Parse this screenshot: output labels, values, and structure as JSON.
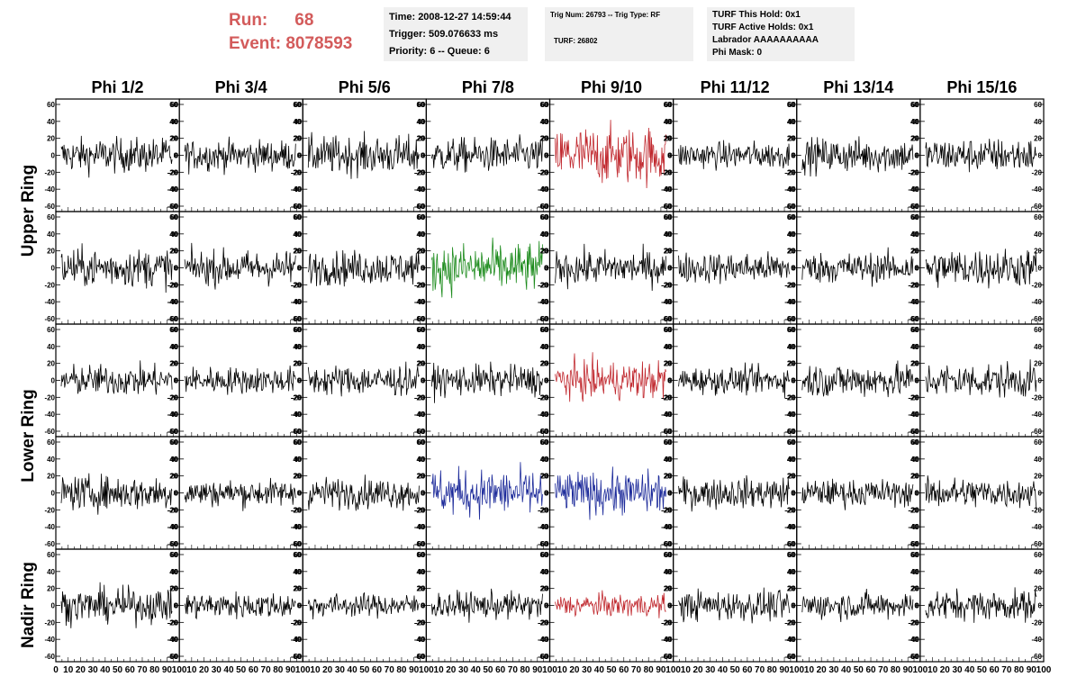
{
  "header": {
    "run_label": "Run:",
    "run_value": "68",
    "event_label": "Event:",
    "event_value": "8078593"
  },
  "time_box": {
    "time": "Time: 2008-12-27 14:59:44",
    "trigger": "Trigger: 509.076633 ms",
    "priority": "Priority: 6 -- Queue: 6"
  },
  "trig_box": {
    "line1": "Trig Num: 26793 -- Trig Type: RF",
    "line2": "TURF: 26802"
  },
  "turf_box": {
    "this_hold": "TURF This Hold: 0x1",
    "active_holds": "TURF Active Holds: 0x1",
    "labrador": "Labrador AAAAAAAAAA",
    "phi_mask": "Phi Mask: 0"
  },
  "columns": [
    "Phi 1/2",
    "Phi 3/4",
    "Phi 5/6",
    "Phi 7/8",
    "Phi 9/10",
    "Phi 11/12",
    "Phi 13/14",
    "Phi 15/16"
  ],
  "rows": [
    "Upper Ring",
    "Lower Ring",
    "Nadir Ring"
  ],
  "colors": {
    "default": "#000000",
    "red": "#c0272d",
    "green": "#1e8c1e",
    "blue": "#1c2a9a",
    "run_text": "#d35b5b"
  },
  "chart_data": {
    "type": "line",
    "description_rows": 5,
    "description_cols": 8,
    "ylim": [
      -60,
      60
    ],
    "xlim": [
      0,
      100
    ],
    "yticks": [
      -60,
      -40,
      -20,
      0,
      20,
      40,
      60
    ],
    "xtick_labels": [
      "0",
      "10",
      "20",
      "30",
      "40",
      "50",
      "60",
      "70",
      "80",
      "90",
      "100"
    ],
    "panel_colors": [
      [
        "default",
        "default",
        "default",
        "default",
        "red",
        "default",
        "default",
        "default"
      ],
      [
        "default",
        "default",
        "default",
        "green",
        "default",
        "default",
        "default",
        "default"
      ],
      [
        "default",
        "default",
        "default",
        "default",
        "red",
        "default",
        "default",
        "default"
      ],
      [
        "default",
        "default",
        "default",
        "blue",
        "blue",
        "default",
        "default",
        "default"
      ],
      [
        "default",
        "default",
        "default",
        "default",
        "red",
        "default",
        "default",
        "default"
      ]
    ],
    "panel_amplitude": [
      [
        18,
        16,
        20,
        18,
        30,
        14,
        18,
        18
      ],
      [
        20,
        18,
        18,
        26,
        18,
        16,
        16,
        20
      ],
      [
        16,
        14,
        16,
        16,
        20,
        14,
        18,
        18
      ],
      [
        18,
        14,
        16,
        24,
        22,
        16,
        14,
        16
      ],
      [
        18,
        14,
        12,
        14,
        12,
        16,
        14,
        16
      ]
    ]
  }
}
